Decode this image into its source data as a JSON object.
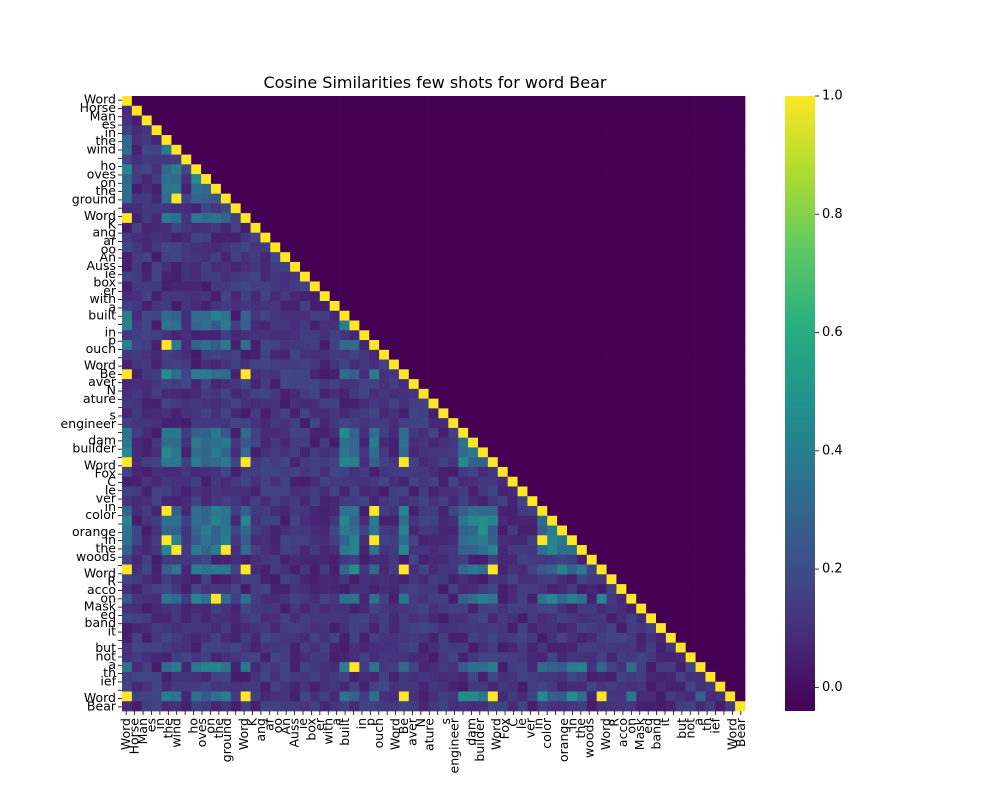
{
  "chart_data": {
    "type": "heatmap",
    "title": "Cosine Similarities few shots for word Bear",
    "xlabel": "",
    "ylabel": "",
    "colormap": "viridis",
    "value_range": [
      -0.04,
      1.0
    ],
    "colorbar_ticks": [
      "0.0",
      "0.2",
      "0.4",
      "0.6",
      "0.8",
      "1.0"
    ],
    "colorbar_tick_values": [
      0.0,
      0.2,
      0.4,
      0.6,
      0.8,
      1.0
    ],
    "mask": "upper triangle masked (shown as minimum color)",
    "tokens": [
      "Word",
      "Horse",
      "Man",
      "es",
      "in",
      "the",
      "wind",
      "ho",
      "oves",
      "on",
      "the",
      "ground",
      "Word",
      "K",
      "ang",
      "ar",
      "oo",
      "An",
      "Auss",
      "ie",
      "box",
      "er",
      "with",
      "a",
      "built",
      "in",
      "p",
      "ouch",
      "Word",
      "Be",
      "aver",
      "N",
      "ature",
      "s",
      "engineer",
      "dam",
      "builder",
      "Word",
      "Fox",
      "C",
      "le",
      "ver",
      "in",
      "color",
      "orange",
      "in",
      "the",
      "woods",
      "Word",
      "R",
      "acco",
      "on",
      "Mask",
      "ed",
      "band",
      "it",
      "but",
      "not",
      "a",
      "th",
      "ief",
      "Word",
      "Bear"
    ],
    "y_tick_labels": [
      "Word",
      "Horse",
      "Man",
      "es",
      "in",
      "the",
      "wind",
      "",
      "ho",
      "oves",
      "on",
      "the",
      "ground",
      "",
      "Word",
      "K",
      "ang",
      "ar",
      "oo",
      "An",
      "Auss",
      "ie",
      "box",
      "er",
      "with",
      "a",
      "built",
      "",
      "in",
      "p",
      "ouch",
      "",
      "Word",
      "Be",
      "aver",
      "N",
      "ature",
      "",
      "s",
      "engineer",
      "",
      "dam",
      "builder",
      "",
      "Word",
      "Fox",
      "C",
      "le",
      "ver",
      "in",
      "color",
      "",
      "orange",
      "in",
      "the",
      "woods",
      "",
      "Word",
      "R",
      "acco",
      "on",
      "Mask",
      "ed",
      "band",
      "it",
      "",
      "but",
      "not",
      "a",
      "th",
      "ief",
      "",
      "Word",
      "Bear"
    ],
    "x_tick_labels": [
      "Word",
      "Horse",
      "Man",
      "es",
      "in",
      "the",
      "wind",
      "",
      "ho",
      "oves",
      "on",
      "the",
      "ground",
      "",
      "Word",
      "K",
      "ang",
      "ar",
      "oo",
      "An",
      "Auss",
      "ie",
      "box",
      "er",
      "with",
      "a",
      "built",
      "",
      "in",
      "p",
      "ouch",
      "",
      "Word",
      "Be",
      "aver",
      "N",
      "ature",
      "",
      "s",
      "engineer",
      "",
      "dam",
      "builder",
      "",
      "Word",
      "Fox",
      "C",
      "le",
      "ver",
      "in",
      "color",
      "",
      "orange",
      "in",
      "the",
      "woods",
      "",
      "Word",
      "R",
      "acco",
      "on",
      "Mask",
      "ed",
      "band",
      "it",
      "",
      "but",
      "not",
      "a",
      "th",
      "ief",
      "",
      "Word",
      "Bear"
    ],
    "identical_token_pairs_value": 1.0,
    "diagonal_value": 1.0,
    "off_diagonal_typical_range": [
      0.0,
      0.3
    ],
    "notable_pairs": [
      {
        "row": "the",
        "col": "the",
        "value": 1.0
      },
      {
        "row": "in",
        "col": "in",
        "value": 1.0
      },
      {
        "row": "a",
        "col": "a",
        "value": 1.0
      },
      {
        "row": "Word",
        "col": "Word",
        "value": 1.0
      }
    ]
  }
}
